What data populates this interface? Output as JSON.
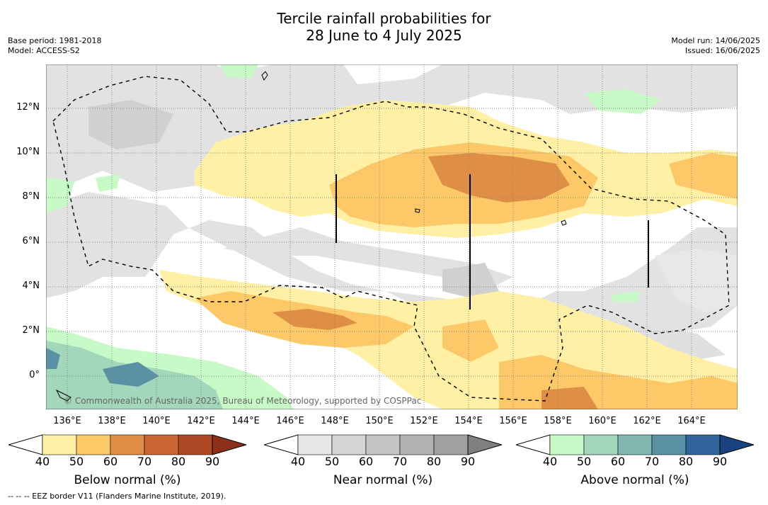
{
  "title_line1": "Tercile rainfall probabilities for",
  "title_line2": "28 June to 4 July 2025",
  "base_period": "Base period: 1981-2018",
  "model": "Model: ACCESS-S2",
  "model_run": "Model run: 14/06/2025",
  "issued": "Issued: 16/06/2025",
  "x_ticks": [
    "136°E",
    "138°E",
    "140°E",
    "142°E",
    "144°E",
    "146°E",
    "148°E",
    "150°E",
    "152°E",
    "154°E",
    "156°E",
    "158°E",
    "160°E",
    "162°E",
    "164°E"
  ],
  "y_ticks": [
    "12°N",
    "10°N",
    "8°N",
    "6°N",
    "4°N",
    "2°N",
    "0°"
  ],
  "copyright": "© Commonwealth of Australia 2025, Bureau of Meteorology, supported by COSPPac",
  "colorbars": [
    {
      "label": "Below normal (%)",
      "ticks": [
        "40",
        "50",
        "60",
        "70",
        "80",
        "90"
      ],
      "colors": [
        "#fff0a6",
        "#fdc867",
        "#de8f45",
        "#cc6534",
        "#ad4924",
        "#8c3019"
      ]
    },
    {
      "label": "Near normal (%)",
      "ticks": [
        "40",
        "50",
        "60",
        "70",
        "80",
        "90"
      ],
      "colors": [
        "#e6e6e6",
        "#d4d4d4",
        "#c4c4c4",
        "#b3b3b3",
        "#a0a0a0",
        "#808080"
      ]
    },
    {
      "label": "Above normal (%)",
      "ticks": [
        "40",
        "50",
        "60",
        "70",
        "80",
        "90"
      ],
      "colors": [
        "#c8fac8",
        "#a2d7bb",
        "#80b7b0",
        "#5b91a5",
        "#2f6399",
        "#1a4280"
      ]
    }
  ],
  "footnote": "--  --  -- EEZ border V11 (Flanders Marine Institute, 2019).",
  "colors": {
    "map_background": "#ffffff",
    "coast": "#000000"
  }
}
